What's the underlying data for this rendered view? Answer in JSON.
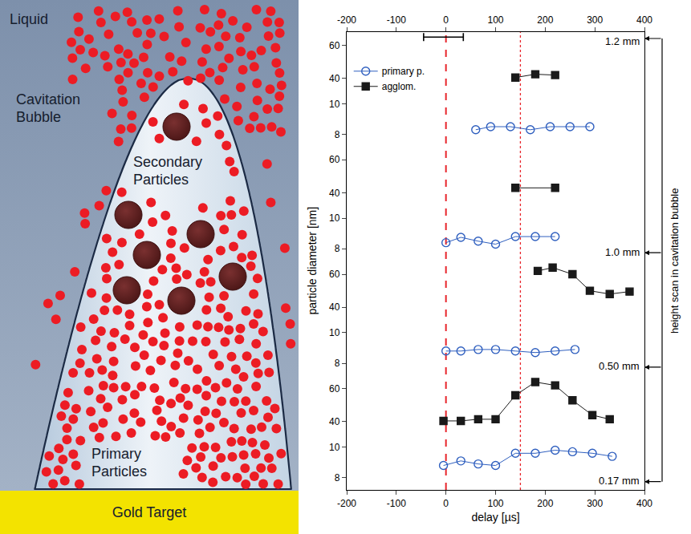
{
  "diagram": {
    "liquid": "Liquid",
    "bubble": "Cavitation Bubble",
    "secondary_particles": "Secondary Particles",
    "primary_particles": "Primary Particles",
    "target": "Gold Target"
  },
  "chart_data": {
    "type": "scatter",
    "x_label": "delay [µs]",
    "y_label": "particle diameter [nm]",
    "side_label": "height scan in cavitation bubble",
    "xlim": [
      -200,
      400
    ],
    "xticks": [
      -200,
      -100,
      0,
      100,
      200,
      300,
      400
    ],
    "legend": "upper left",
    "reference_lines": [
      {
        "x": 0,
        "color": "#e8262c",
        "line_style": "dashed"
      },
      {
        "x": 150,
        "color": "#e8262c",
        "line_style": "dotted"
      }
    ],
    "panels": [
      {
        "height_label": "1.2 mm",
        "subpanels": [
          {
            "ylim": [
              32,
              68
            ],
            "yticks": [
              40,
              60
            ],
            "series": [
              {
                "name": "agglom.",
                "color": "#1a1a1a",
                "marker": "square",
                "line_style": "solid",
                "x": [
                  140,
                  180,
                  220
                ],
                "values": [
                  40.5,
                  42.5,
                  42
                ]
              }
            ],
            "error_bars": [
              {
                "x": -5,
                "y": 65,
                "xerr": 40
              }
            ]
          },
          {
            "ylim": [
              7.2,
              10.8
            ],
            "yticks": [
              8,
              10
            ],
            "series": [
              {
                "name": "primary p.",
                "color": "#2f5fbf",
                "marker": "circle-open",
                "line_style": "solid",
                "x": [
                  60,
                  90,
                  130,
                  170,
                  210,
                  250,
                  290
                ],
                "values": [
                  8.3,
                  8.5,
                  8.5,
                  8.3,
                  8.5,
                  8.5,
                  8.5
                ]
              }
            ]
          }
        ]
      },
      {
        "height_label": "1.0 mm",
        "subpanels": [
          {
            "ylim": [
              32,
              68
            ],
            "yticks": [
              40,
              60
            ],
            "series": [
              {
                "name": "agglom.",
                "color": "#1a1a1a",
                "marker": "square",
                "line_style": "solid",
                "x": [
                  140,
                  220
                ],
                "values": [
                  43,
                  43
                ]
              }
            ]
          },
          {
            "ylim": [
              7.2,
              10.8
            ],
            "yticks": [
              8,
              10
            ],
            "series": [
              {
                "name": "primary p.",
                "color": "#2f5fbf",
                "marker": "circle-open",
                "line_style": "solid",
                "x": [
                  0,
                  30,
                  65,
                  100,
                  140,
                  180,
                  220
                ],
                "values": [
                  8.4,
                  8.75,
                  8.5,
                  8.3,
                  8.8,
                  8.8,
                  8.8
                ]
              }
            ]
          }
        ]
      },
      {
        "height_label": "0.50 mm",
        "subpanels": [
          {
            "ylim": [
              32,
              68
            ],
            "yticks": [
              40,
              60
            ],
            "series": [
              {
                "name": "agglom.",
                "color": "#1a1a1a",
                "marker": "square",
                "line_style": "solid",
                "x": [
                  185,
                  215,
                  255,
                  290,
                  330,
                  370
                ],
                "values": [
                  62,
                  64,
                  60,
                  50,
                  48,
                  49.5
                ]
              }
            ]
          },
          {
            "ylim": [
              7.2,
              10.8
            ],
            "yticks": [
              8,
              10
            ],
            "series": [
              {
                "name": "primary p.",
                "color": "#2f5fbf",
                "marker": "circle-open",
                "line_style": "solid",
                "x": [
                  0,
                  30,
                  65,
                  100,
                  140,
                  180,
                  220,
                  260
                ],
                "values": [
                  8.8,
                  8.8,
                  8.9,
                  8.9,
                  8.8,
                  8.7,
                  8.8,
                  8.9
                ]
              }
            ]
          }
        ]
      },
      {
        "height_label": "0.17 mm",
        "subpanels": [
          {
            "ylim": [
              32,
              68
            ],
            "yticks": [
              40,
              60
            ],
            "series": [
              {
                "name": "agglom.",
                "color": "#1a1a1a",
                "marker": "square",
                "line_style": "solid",
                "x": [
                  -5,
                  30,
                  65,
                  100,
                  140,
                  180,
                  220,
                  255,
                  295,
                  330
                ],
                "values": [
                  40.5,
                  40.5,
                  41.5,
                  41.5,
                  56,
                  64,
                  62,
                  53,
                  44,
                  41.5
                ]
              }
            ]
          },
          {
            "ylim": [
              7.2,
              10.8
            ],
            "yticks": [
              8,
              10
            ],
            "series": [
              {
                "name": "primary p.",
                "color": "#2f5fbf",
                "marker": "circle-open",
                "line_style": "solid",
                "x": [
                  -5,
                  30,
                  65,
                  100,
                  140,
                  180,
                  220,
                  255,
                  295,
                  335
                ],
                "values": [
                  8.8,
                  9.1,
                  8.9,
                  8.8,
                  9.6,
                  9.6,
                  9.8,
                  9.7,
                  9.6,
                  9.4
                ]
              }
            ]
          }
        ]
      }
    ]
  }
}
